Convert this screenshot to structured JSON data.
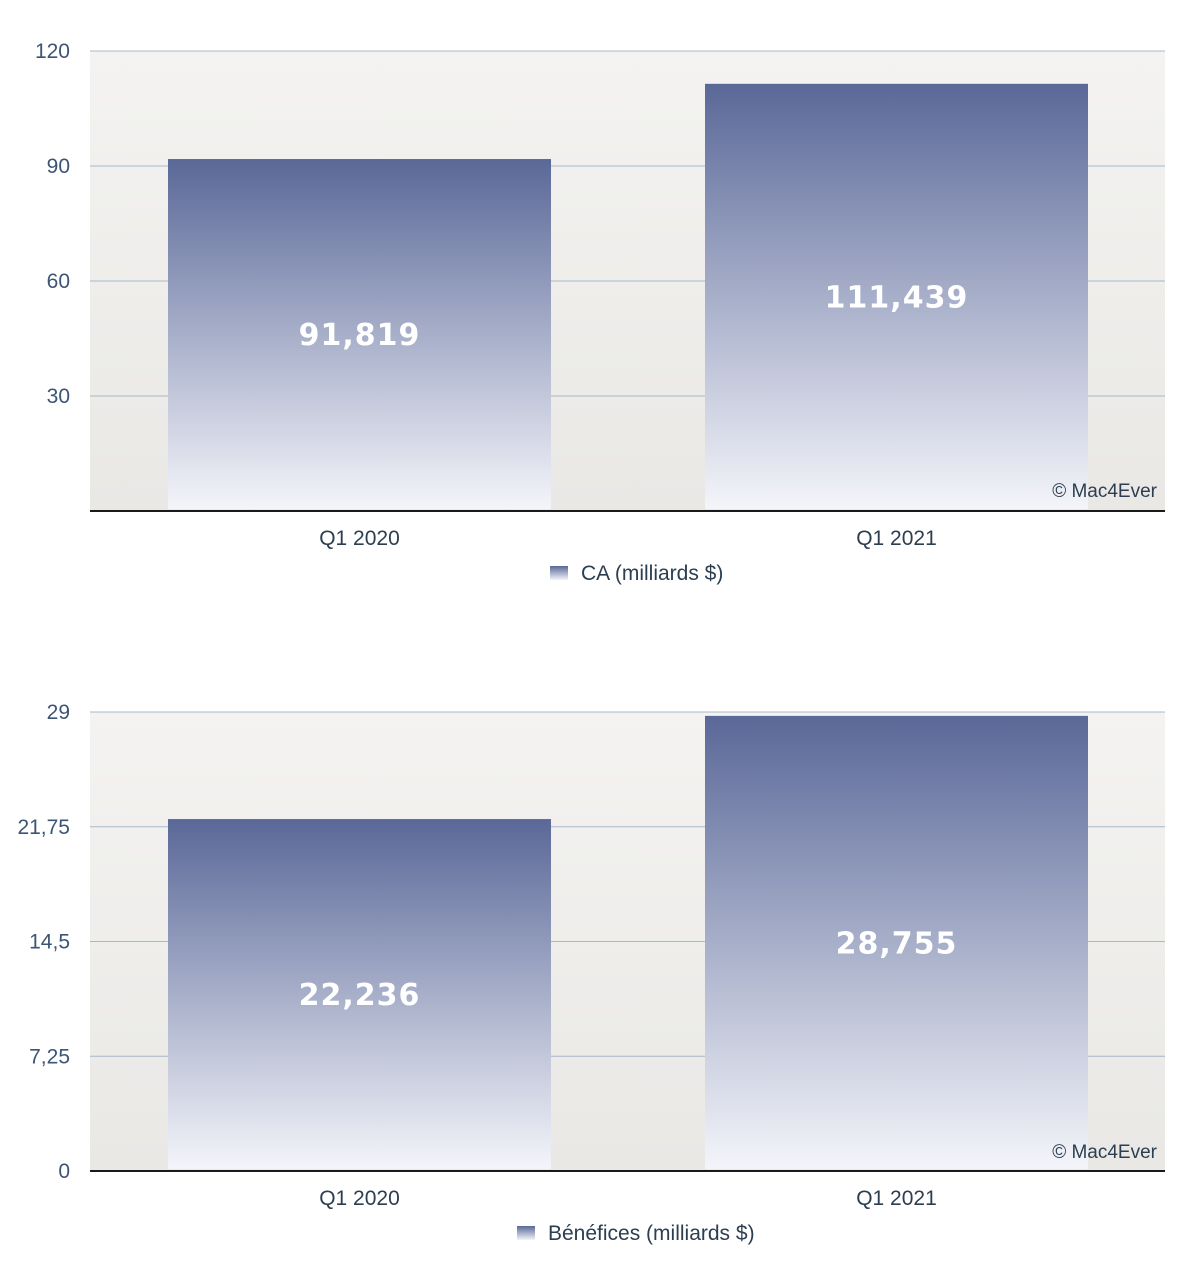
{
  "chart_data": [
    {
      "type": "bar",
      "categories": [
        "Q1 2020",
        "Q1 2021"
      ],
      "series": [
        {
          "name": "CA (milliards $)",
          "values": [
            91.819,
            111.439
          ]
        }
      ],
      "value_labels": [
        "91,819",
        "111,439"
      ],
      "yticks": [
        "30",
        "60",
        "90",
        "120"
      ],
      "ytick_values": [
        30,
        60,
        90,
        120
      ],
      "ylim": [
        0,
        120
      ],
      "grid": true,
      "legend": "bottom-center",
      "credit": "© Mac4Ever"
    },
    {
      "type": "bar",
      "categories": [
        "Q1 2020",
        "Q1 2021"
      ],
      "series": [
        {
          "name": "Bénéfices (milliards $)",
          "values": [
            22.236,
            28.755
          ]
        }
      ],
      "value_labels": [
        "22,236",
        "28,755"
      ],
      "yticks": [
        "0",
        "7,25",
        "14,5",
        "21,75",
        "29"
      ],
      "ytick_values": [
        0,
        7.25,
        14.5,
        21.75,
        29
      ],
      "ylim": [
        0,
        29
      ],
      "grid": true,
      "legend": "bottom-center",
      "credit": "© Mac4Ever"
    }
  ],
  "colors": {
    "bar_top": "#5a6898",
    "bar_bottom": "#f4f5fa",
    "grid": "#a8b8c8",
    "axis": "#1a1a1a",
    "background": "#efeeeb"
  }
}
